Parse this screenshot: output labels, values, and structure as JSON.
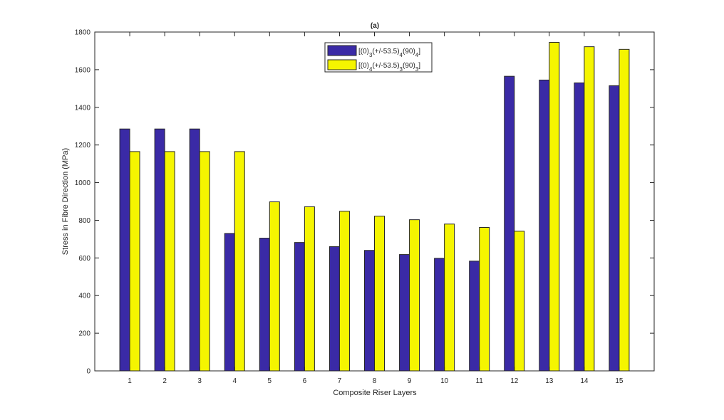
{
  "chart_data": {
    "type": "bar",
    "title": "(a)",
    "xlabel": "Composite Riser Layers",
    "ylabel": "Stress in Fibre Direction (MPa)",
    "categories": [
      "1",
      "2",
      "3",
      "4",
      "5",
      "6",
      "7",
      "8",
      "9",
      "10",
      "11",
      "12",
      "13",
      "14",
      "15"
    ],
    "ylim": [
      0,
      1800
    ],
    "yticks": [
      "0",
      "200",
      "400",
      "600",
      "800",
      "1000",
      "1200",
      "1400",
      "1600",
      "1800"
    ],
    "grid": false,
    "legend_position": "top-center",
    "series": [
      {
        "name_parts": [
          {
            "t": "[(0)",
            "sub": false
          },
          {
            "t": "3",
            "sub": true
          },
          {
            "t": "(+/-53.5)",
            "sub": false
          },
          {
            "t": "4",
            "sub": true
          },
          {
            "t": "(90)",
            "sub": false
          },
          {
            "t": "4",
            "sub": true
          },
          {
            "t": "]",
            "sub": false
          }
        ],
        "color": "#3a2aa6",
        "values": [
          1285,
          1285,
          1285,
          730,
          705,
          682,
          660,
          640,
          618,
          598,
          583,
          1565,
          1545,
          1530,
          1515
        ]
      },
      {
        "name_parts": [
          {
            "t": "[(0)",
            "sub": false
          },
          {
            "t": "4",
            "sub": true
          },
          {
            "t": "(+/-53.5)",
            "sub": false
          },
          {
            "t": "3",
            "sub": true
          },
          {
            "t": "(90)",
            "sub": false
          },
          {
            "t": "3",
            "sub": true
          },
          {
            "t": "]",
            "sub": false
          }
        ],
        "color": "#f5f500",
        "values": [
          1165,
          1165,
          1165,
          1165,
          898,
          872,
          848,
          822,
          803,
          780,
          762,
          742,
          1745,
          1722,
          1708
        ]
      }
    ]
  }
}
